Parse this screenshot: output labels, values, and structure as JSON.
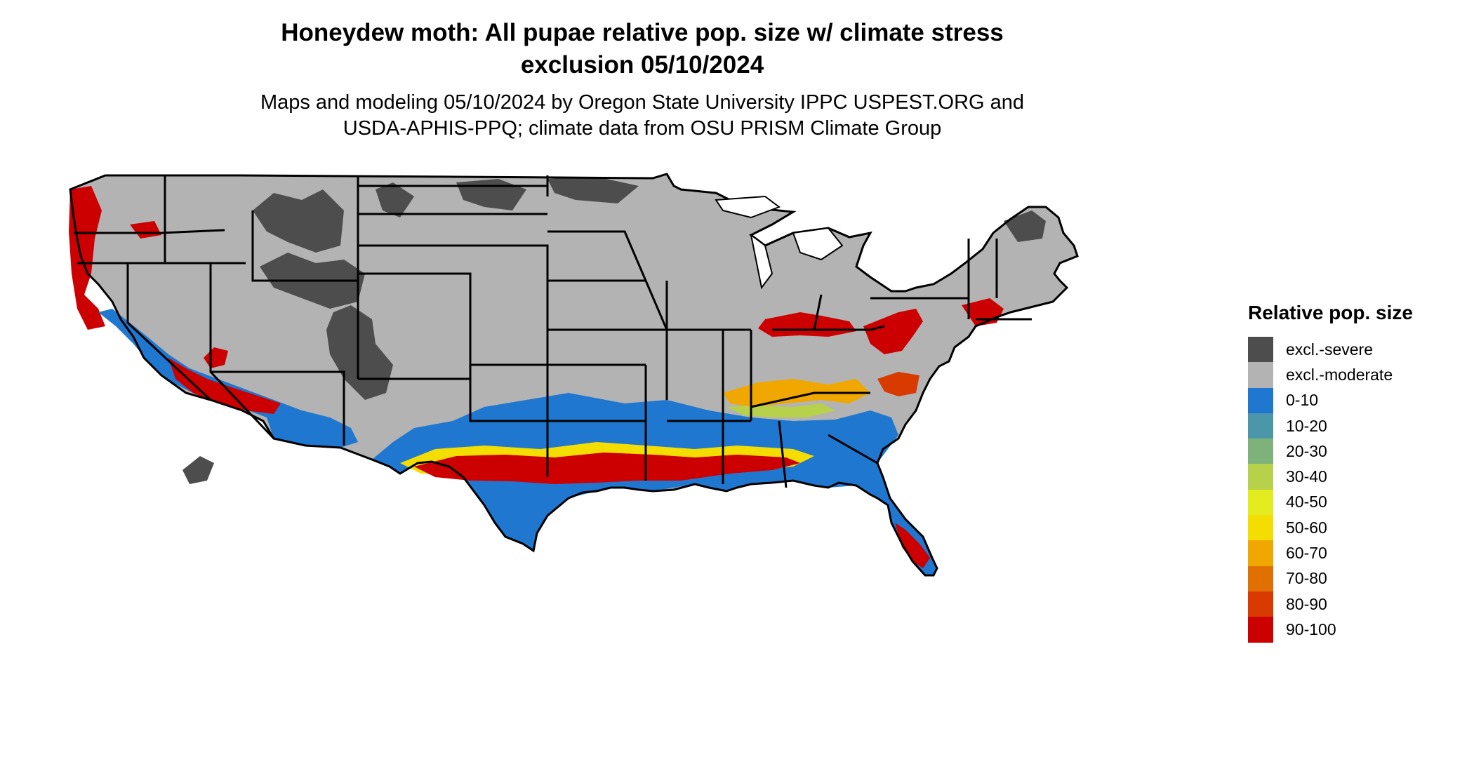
{
  "title_line1": "Honeydew moth: All pupae relative pop. size w/ climate stress",
  "title_line2": "exclusion 05/10/2024",
  "subtitle_line1": "Maps and modeling 05/10/2024 by Oregon State University IPPC USPEST.ORG and",
  "subtitle_line2": "USDA-APHIS-PPQ; climate data from OSU PRISM Climate Group",
  "legend": {
    "title": "Relative pop. size",
    "items": [
      {
        "label": "excl.-severe",
        "color": "#4d4d4d"
      },
      {
        "label": "excl.-moderate",
        "color": "#b3b3b3"
      },
      {
        "label": "0-10",
        "color": "#1f77d0"
      },
      {
        "label": "10-20",
        "color": "#4b96a8"
      },
      {
        "label": "20-30",
        "color": "#7fb27a"
      },
      {
        "label": "30-40",
        "color": "#b8d14a"
      },
      {
        "label": "40-50",
        "color": "#e2ec1e"
      },
      {
        "label": "50-60",
        "color": "#f4dd00"
      },
      {
        "label": "60-70",
        "color": "#f0a800"
      },
      {
        "label": "70-80",
        "color": "#e07000"
      },
      {
        "label": "80-90",
        "color": "#d83a00"
      },
      {
        "label": "90-100",
        "color": "#cc0000"
      }
    ]
  }
}
